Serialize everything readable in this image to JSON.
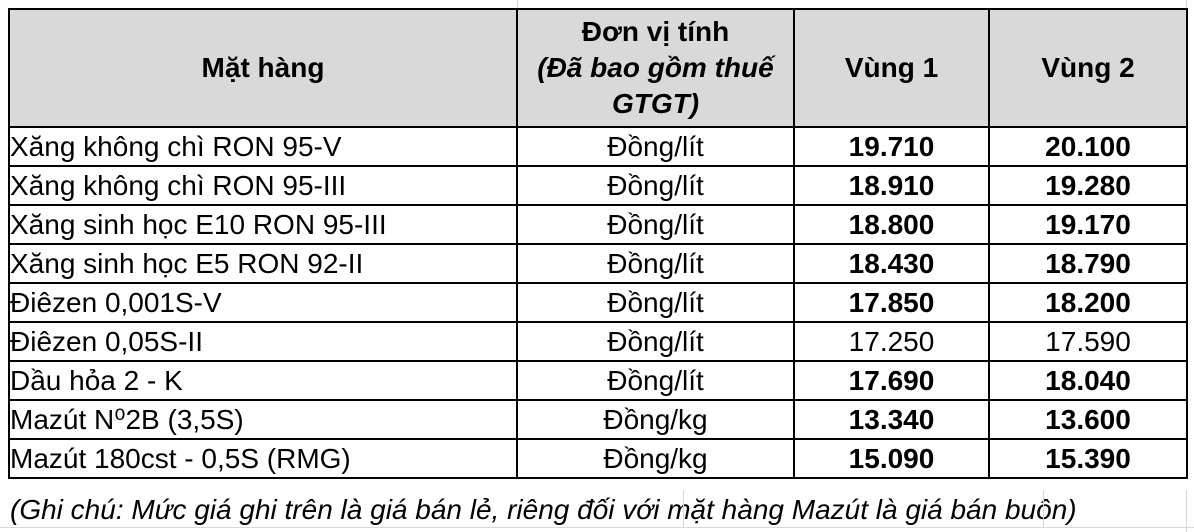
{
  "table": {
    "columns": {
      "product": "Mặt hàng",
      "unit_label": "Đơn vị tính",
      "unit_sublabel": "(Đã bao gồm thuế GTGT)",
      "region1": "Vùng 1",
      "region2": "Vùng 2"
    },
    "rows": [
      {
        "product": "Xăng không chì RON 95-V",
        "unit": "Đồng/lít",
        "region1": "19.710",
        "region2": "20.100",
        "values_bold": true
      },
      {
        "product": "Xăng không chì RON 95-III",
        "unit": "Đồng/lít",
        "region1": "18.910",
        "region2": "19.280",
        "values_bold": true
      },
      {
        "product": "Xăng sinh học E10 RON 95-III",
        "unit": "Đồng/lít",
        "region1": "18.800",
        "region2": "19.170",
        "values_bold": true
      },
      {
        "product": "Xăng sinh học E5 RON 92-II",
        "unit": "Đồng/lít",
        "region1": "18.430",
        "region2": "18.790",
        "values_bold": true
      },
      {
        "product": "Điêzen 0,001S-V",
        "unit": "Đồng/lít",
        "region1": "17.850",
        "region2": "18.200",
        "values_bold": true
      },
      {
        "product": "Điêzen 0,05S-II",
        "unit": "Đồng/lít",
        "region1": "17.250",
        "region2": "17.590",
        "values_bold": false
      },
      {
        "product": "Dầu hỏa 2 - K",
        "unit": "Đồng/lít",
        "region1": "17.690",
        "region2": "18.040",
        "values_bold": true
      },
      {
        "product": "Mazút N⁰2B (3,5S)",
        "unit": "Đồng/kg",
        "region1": "13.340",
        "region2": "13.600",
        "values_bold": true
      },
      {
        "product": "Mazút 180cst - 0,5S (RMG)",
        "unit": "Đồng/kg",
        "region1": "15.090",
        "region2": "15.390",
        "values_bold": true
      }
    ],
    "note": "(Ghi chú: Mức giá ghi trên là giá bán lẻ, riêng đối với mặt hàng Mazút là giá bán buôn)"
  },
  "colors": {
    "header_bg": "#d9d9d9",
    "border": "#000000",
    "gridline_faint": "#d8d8d8",
    "text": "#000000"
  }
}
